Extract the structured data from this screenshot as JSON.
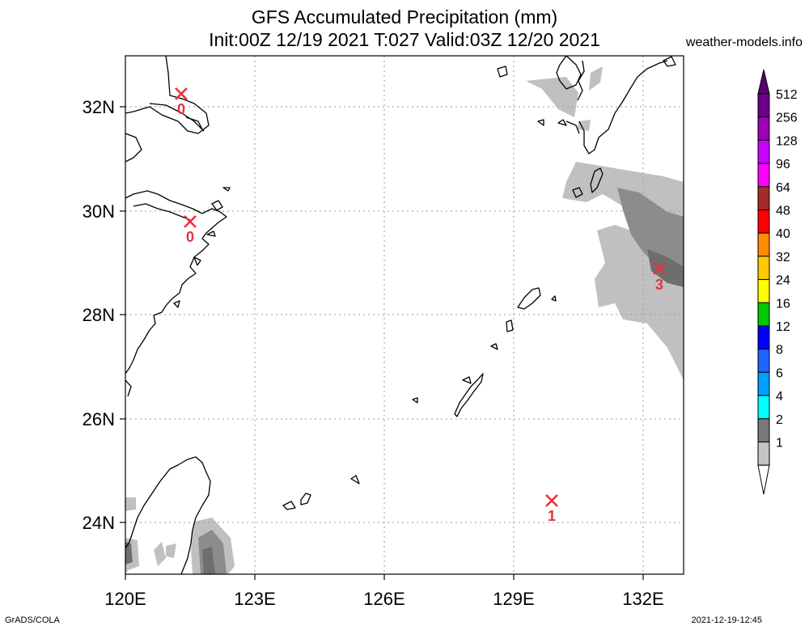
{
  "header": {
    "title_line1": "GFS Accumulated Precipitation (mm)",
    "title_line2": "Init:00Z 12/19 2021 T:027 Valid:03Z 12/20 2021",
    "site": "weather-models.info"
  },
  "map": {
    "lon_labels": [
      "120E",
      "123E",
      "126E",
      "129E",
      "132E"
    ],
    "lat_labels": [
      "32N",
      "30N",
      "28N",
      "26N",
      "24N"
    ],
    "markers": [
      {
        "name": "marker-shanghai-north",
        "value": "0"
      },
      {
        "name": "marker-ningbo",
        "value": "0"
      },
      {
        "name": "marker-kyushu-south",
        "value": "3"
      },
      {
        "name": "marker-sea-south",
        "value": "1"
      }
    ],
    "precip_colors": {
      "light": "#c0c0c0",
      "medium": "#8c8c8c",
      "heavy": "#6e6e6e"
    }
  },
  "colorbar": {
    "levels": [
      {
        "label": "512",
        "color": "#6c008a"
      },
      {
        "label": "256",
        "color": "#9d00b5"
      },
      {
        "label": "128",
        "color": "#cc00ff"
      },
      {
        "label": "96",
        "color": "#ff00ff"
      },
      {
        "label": "64",
        "color": "#a52a2a"
      },
      {
        "label": "48",
        "color": "#ff0000"
      },
      {
        "label": "40",
        "color": "#ff8c00"
      },
      {
        "label": "32",
        "color": "#ffc800"
      },
      {
        "label": "24",
        "color": "#ffff00"
      },
      {
        "label": "16",
        "color": "#00c800"
      },
      {
        "label": "12",
        "color": "#0000ff"
      },
      {
        "label": "8",
        "color": "#1e64ff"
      },
      {
        "label": "6",
        "color": "#00a0ff"
      },
      {
        "label": "4",
        "color": "#00ffff"
      },
      {
        "label": "2",
        "color": "#787878"
      },
      {
        "label": "1",
        "color": "#c3c3c3"
      }
    ],
    "top_color": "#5a006e"
  },
  "footer": {
    "left": "GrADS/COLA",
    "right": "2021-12-19-12:45"
  }
}
